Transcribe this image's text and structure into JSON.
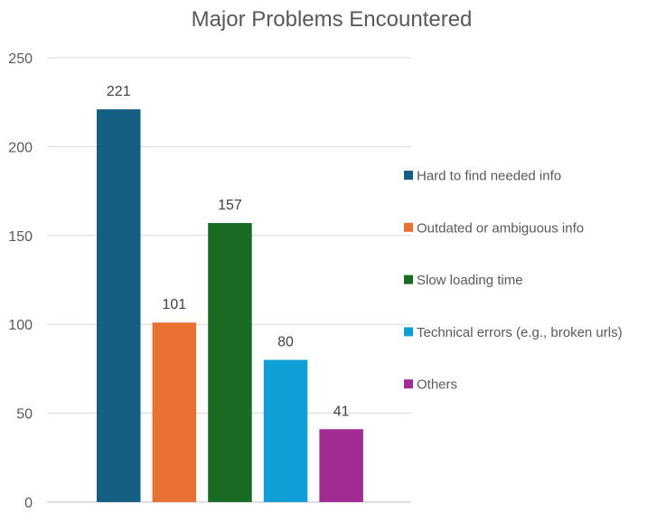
{
  "chart_data": {
    "type": "bar",
    "title": "Major Problems Encountered",
    "categories": [
      "Hard to find needed info",
      "Outdated or ambiguous info",
      "Slow loading time",
      "Technical errors (e.g., broken urls)",
      "Others"
    ],
    "values": [
      221,
      101,
      157,
      80,
      41
    ],
    "colors": [
      "#156082",
      "#E97132",
      "#196B24",
      "#0F9ED5",
      "#A02B93"
    ],
    "ylim": [
      0,
      250
    ],
    "yticks": [
      0,
      50,
      100,
      150,
      200,
      250
    ],
    "grid": true,
    "legend": "right",
    "data_labels": true
  }
}
